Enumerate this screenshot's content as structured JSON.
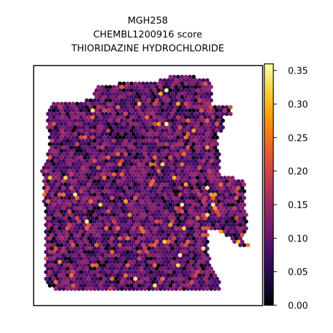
{
  "chart_data": {
    "type": "scatter",
    "subtype": "spatial-hexagonal-spot-map",
    "title_lines": [
      "MGH258",
      "CHEMBL1200916 score",
      "THIORIDAZINE HYDROCHLORIDE"
    ],
    "colorbar": {
      "colormap": "inferno",
      "vmin": 0.0,
      "vmax": 0.36,
      "ticks": [
        0.0,
        0.05,
        0.1,
        0.15,
        0.2,
        0.25,
        0.3,
        0.35
      ],
      "tick_labels": [
        "0.00",
        "0.05",
        "0.10",
        "0.15",
        "0.20",
        "0.25",
        "0.30",
        "0.35"
      ]
    },
    "axes": {
      "x_ticks": "none",
      "y_ticks": "none",
      "grid": false
    },
    "value_distribution": {
      "typical_range": [
        0.05,
        0.15
      ],
      "min": 0.0,
      "max": 0.35,
      "note": "per-spot score; most spots dark purple to magenta, scattered orange/yellow spots"
    }
  }
}
